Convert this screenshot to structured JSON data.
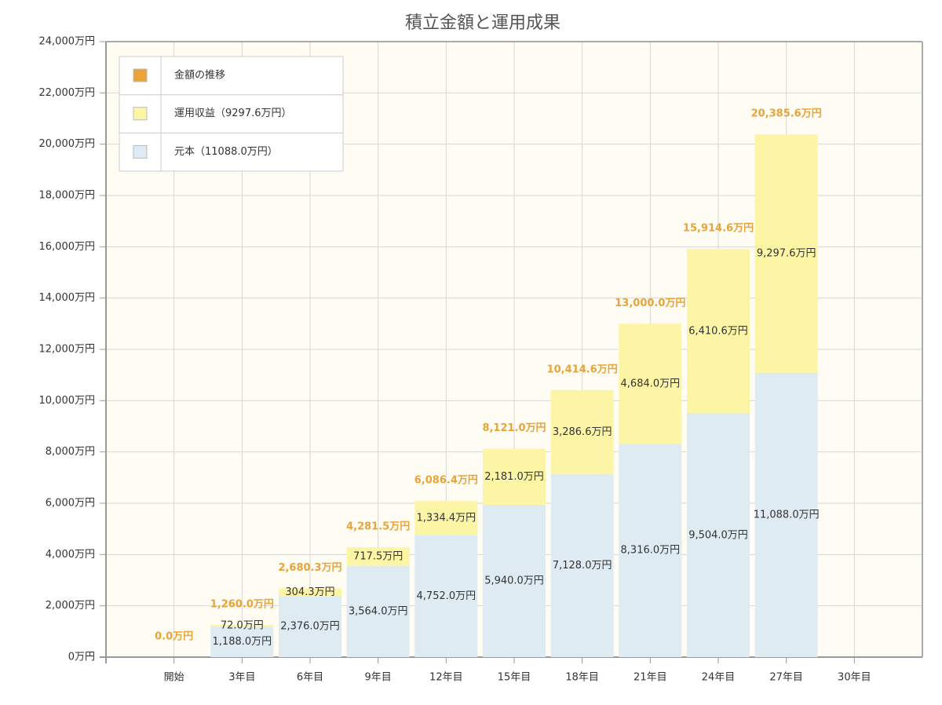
{
  "chart_data": {
    "type": "bar",
    "stacked": true,
    "title": "積立金額と運用成果",
    "categories": [
      "開始",
      "3年目",
      "6年目",
      "9年目",
      "12年目",
      "15年目",
      "18年目",
      "21年目",
      "24年目",
      "27年目",
      "30年目"
    ],
    "series": [
      {
        "name": "元本（11088.0万円）",
        "color": "#deebf2",
        "values": [
          0,
          1188,
          2376,
          3564,
          4752,
          5940,
          7128,
          8316,
          9504,
          11088,
          null
        ],
        "value_labels": [
          null,
          "1,188.0万円",
          "2,376.0万円",
          "3,564.0万円",
          "4,752.0万円",
          "5,940.0万円",
          "7,128.0万円",
          "8,316.0万円",
          "9,504.0万円",
          "11,088.0万円",
          null
        ]
      },
      {
        "name": "運用収益（9297.6万円）",
        "color": "#fdf5a6",
        "values": [
          0,
          72,
          304.3,
          717.5,
          1334.4,
          2181,
          3286.6,
          4684,
          6410.6,
          9297.6,
          null
        ],
        "value_labels": [
          null,
          "72.0万円",
          "304.3万円",
          "717.5万円",
          "1,334.4万円",
          "2,181.0万円",
          "3,286.6万円",
          "4,684.0万円",
          "6,410.6万円",
          "9,297.6万円",
          null
        ]
      },
      {
        "name": "金額の推移",
        "color": "#e8a33a",
        "kind": "label",
        "values": [
          0,
          1260,
          2680.3,
          4281.5,
          6086.4,
          8121,
          10414.6,
          13000,
          15914.6,
          20385.6,
          null
        ],
        "value_labels": [
          "0.0万円",
          "1,260.0万円",
          "2,680.3万円",
          "4,281.5万円",
          "6,086.4万円",
          "8,121.0万円",
          "10,414.6万円",
          "13,000.0万円",
          "15,914.6万円",
          "20,385.6万円",
          null
        ]
      }
    ],
    "ylim": [
      0,
      24000
    ],
    "yticks": [
      {
        "value": 0,
        "label": "0万円"
      },
      {
        "value": 2000,
        "label": "2,000万円"
      },
      {
        "value": 4000,
        "label": "4,000万円"
      },
      {
        "value": 6000,
        "label": "6,000万円"
      },
      {
        "value": 8000,
        "label": "8,000万円"
      },
      {
        "value": 10000,
        "label": "10,000万円"
      },
      {
        "value": 12000,
        "label": "12,000万円"
      },
      {
        "value": 14000,
        "label": "14,000万円"
      },
      {
        "value": 16000,
        "label": "16,000万円"
      },
      {
        "value": 18000,
        "label": "18,000万円"
      },
      {
        "value": 20000,
        "label": "20,000万円"
      },
      {
        "value": 22000,
        "label": "22,000万円"
      },
      {
        "value": 24000,
        "label": "24,000万円"
      }
    ],
    "grid": true,
    "legend": "top-left"
  }
}
